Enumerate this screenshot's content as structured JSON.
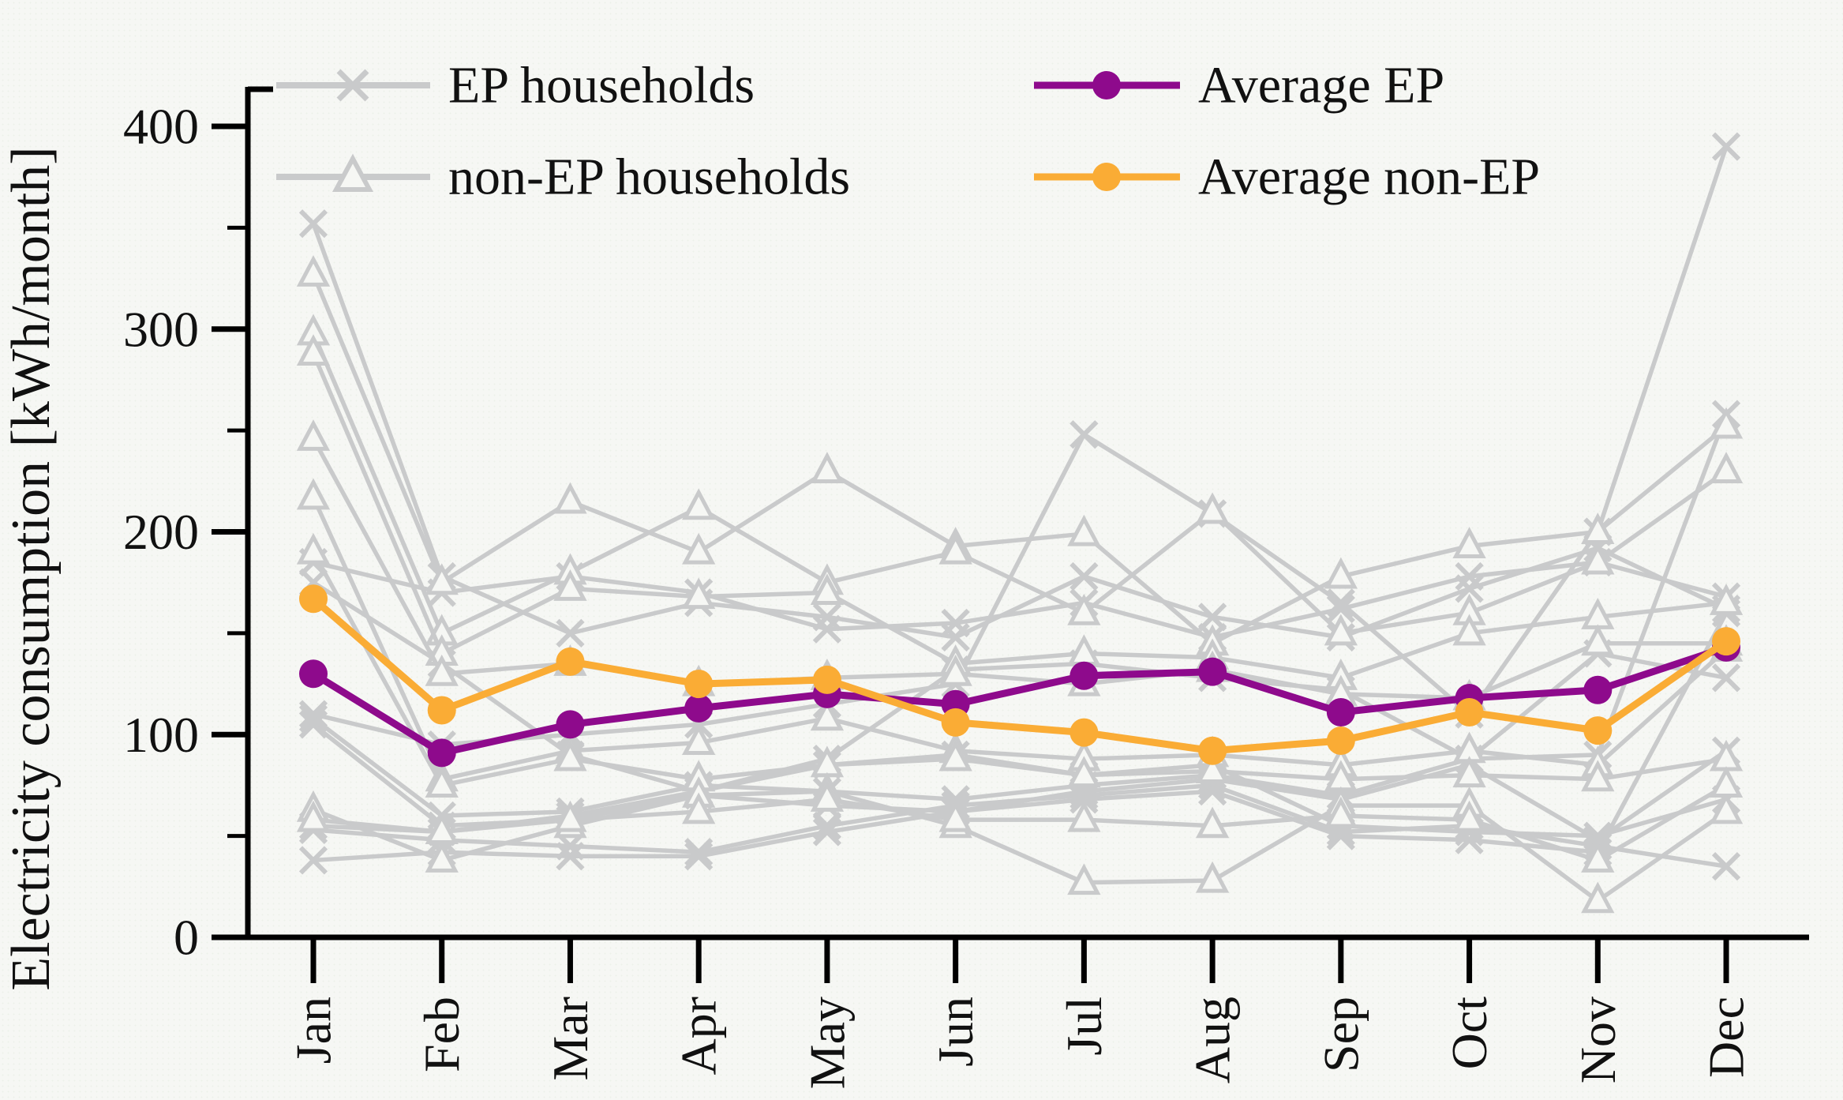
{
  "figure": {
    "y_axis": {
      "title": "Electricity consumption [kWh/month]",
      "major_ticks": [
        0,
        100,
        200,
        300,
        400
      ],
      "minor_ticks": [
        50,
        150,
        250,
        350
      ],
      "range": [
        0,
        400
      ]
    },
    "x_axis": {
      "categories": [
        "Jan",
        "Feb",
        "Mar",
        "Apr",
        "May",
        "Jun",
        "Jul",
        "Aug",
        "Sep",
        "Oct",
        "Nov",
        "Dec"
      ]
    },
    "legend": {
      "ep_households_label": "EP households",
      "non_ep_households_label": "non-EP households",
      "average_ep_label": "Average EP",
      "average_non_ep_label": "Average non-EP"
    }
  },
  "colors": {
    "average_ep": "#8E0A8C",
    "average_non_ep": "#FAAC35",
    "household_gray": "#C9CACB",
    "axis": "#000000",
    "background": "#f6f7f4"
  },
  "chart_data": {
    "type": "line",
    "title": "",
    "xlabel": "",
    "ylabel": "Electricity consumption [kWh/month]",
    "ylim": [
      0,
      400
    ],
    "grid": false,
    "legend_position": "top",
    "categories": [
      "Jan",
      "Feb",
      "Mar",
      "Apr",
      "May",
      "Jun",
      "Jul",
      "Aug",
      "Sep",
      "Oct",
      "Nov",
      "Dec"
    ],
    "averages": [
      {
        "name": "Average EP",
        "marker": "circle",
        "color": "#8E0A8C",
        "values": [
          130,
          91,
          105,
          113,
          120,
          115,
          129,
          131,
          111,
          118,
          122,
          143
        ]
      },
      {
        "name": "Average non-EP",
        "marker": "circle",
        "color": "#FAAC35",
        "values": [
          167,
          112,
          136,
          125,
          127,
          106,
          101,
          92,
          97,
          111,
          102,
          146
        ]
      }
    ],
    "ep_households": {
      "label": "EP households",
      "marker": "x",
      "color": "#C9CACB",
      "values_note": "individual household curves, values approximate (kWh/month)",
      "series": [
        [
          352,
          178,
          150,
          165,
          158,
          148,
          178,
          158,
          148,
          172,
          192,
          162
        ],
        [
          185,
          170,
          178,
          170,
          152,
          155,
          165,
          148,
          162,
          178,
          185,
          168
        ],
        [
          175,
          135,
          90,
          72,
          88,
          132,
          135,
          128,
          122,
          88,
          140,
          128
        ],
        [
          110,
          95,
          100,
          105,
          115,
          125,
          248,
          209,
          165,
          110,
          200,
          390
        ],
        [
          108,
          60,
          62,
          75,
          72,
          68,
          75,
          80,
          70,
          88,
          90,
          258
        ],
        [
          105,
          55,
          58,
          70,
          65,
          62,
          72,
          78,
          68,
          85,
          48,
          92
        ],
        [
          55,
          52,
          60,
          72,
          85,
          90,
          80,
          85,
          55,
          52,
          50,
          68
        ],
        [
          53,
          48,
          45,
          42,
          55,
          65,
          70,
          75,
          52,
          55,
          45,
          35
        ],
        [
          38,
          42,
          40,
          40,
          52,
          62,
          68,
          72,
          50,
          48,
          42,
          160
        ]
      ]
    },
    "non_ep_households": {
      "label": "non-EP households",
      "marker": "triangle",
      "color": "#C9CACB",
      "values_note": "individual household curves, values approximate (kWh/month)",
      "series": [
        [
          327,
          175,
          215,
          190,
          230,
          193,
          199,
          145,
          178,
          193,
          200,
          252
        ],
        [
          298,
          150,
          180,
          212,
          175,
          190,
          160,
          210,
          150,
          160,
          185,
          230
        ],
        [
          288,
          140,
          172,
          168,
          170,
          135,
          140,
          138,
          128,
          150,
          158,
          165
        ],
        [
          246,
          130,
          135,
          125,
          128,
          130,
          125,
          132,
          120,
          118,
          145,
          145
        ],
        [
          217,
          78,
          92,
          96,
          108,
          92,
          88,
          90,
          85,
          92,
          85,
          142
        ],
        [
          190,
          75,
          88,
          78,
          85,
          88,
          80,
          82,
          78,
          80,
          78,
          88
        ],
        [
          63,
          38,
          55,
          70,
          72,
          55,
          27,
          28,
          65,
          65,
          18,
          62
        ],
        [
          58,
          52,
          58,
          62,
          68,
          58,
          58,
          55,
          60,
          58,
          38,
          75
        ]
      ]
    }
  }
}
